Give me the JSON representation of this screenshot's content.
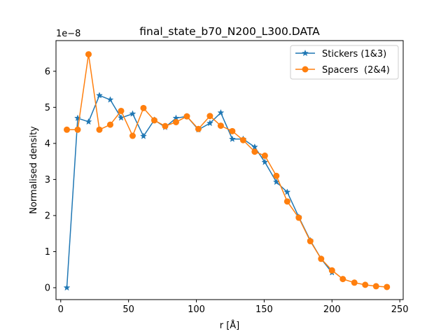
{
  "chart_data": {
    "type": "line",
    "title": "final_state_b70_N200_L300.DATA",
    "xlabel": "r [Å]",
    "ylabel": "Normalised density",
    "y_offset_label": "1e−8",
    "y_scale_factor": 1e-08,
    "xlim": [
      -3.5,
      252.5
    ],
    "ylim": [
      -0.33,
      6.85
    ],
    "x_ticks": [
      0,
      50,
      100,
      150,
      200,
      250
    ],
    "y_ticks": [
      0,
      1,
      2,
      3,
      4,
      5,
      6
    ],
    "grid": false,
    "legend_position": "upper right",
    "series": [
      {
        "name": "Stickers (1&3)",
        "color": "#1f77b4",
        "marker": "star",
        "x": [
          4.5,
          12.5,
          20.5,
          28.5,
          36.5,
          44.5,
          53,
          61,
          69,
          77,
          85,
          93,
          101.5,
          110,
          118,
          126.5,
          134.5,
          143,
          150.5,
          159,
          167,
          175.5,
          184,
          192,
          200
        ],
        "values": [
          0.0,
          4.7,
          4.6,
          5.33,
          5.21,
          4.71,
          4.82,
          4.2,
          4.65,
          4.45,
          4.7,
          4.75,
          4.38,
          4.56,
          4.85,
          4.12,
          4.12,
          3.9,
          3.48,
          2.93,
          2.65,
          1.96,
          1.31,
          0.8,
          0.42
        ]
      },
      {
        "name": "Spacers  (2&4)",
        "color": "#ff7f0e",
        "marker": "circle",
        "x": [
          4.5,
          12.5,
          20.5,
          28.5,
          36.5,
          44.5,
          53,
          61,
          69,
          77,
          85,
          93,
          101.5,
          110,
          118,
          126.5,
          134.5,
          143,
          150.5,
          159,
          167,
          175.5,
          184,
          192,
          200,
          208,
          216.5,
          224.5,
          232.5,
          240.5
        ],
        "values": [
          4.38,
          4.38,
          6.47,
          4.38,
          4.52,
          4.9,
          4.21,
          4.98,
          4.64,
          4.48,
          4.59,
          4.75,
          4.4,
          4.76,
          4.49,
          4.34,
          4.09,
          3.77,
          3.66,
          3.1,
          2.39,
          1.94,
          1.29,
          0.8,
          0.48,
          0.24,
          0.14,
          0.08,
          0.04,
          0.02
        ]
      }
    ]
  }
}
